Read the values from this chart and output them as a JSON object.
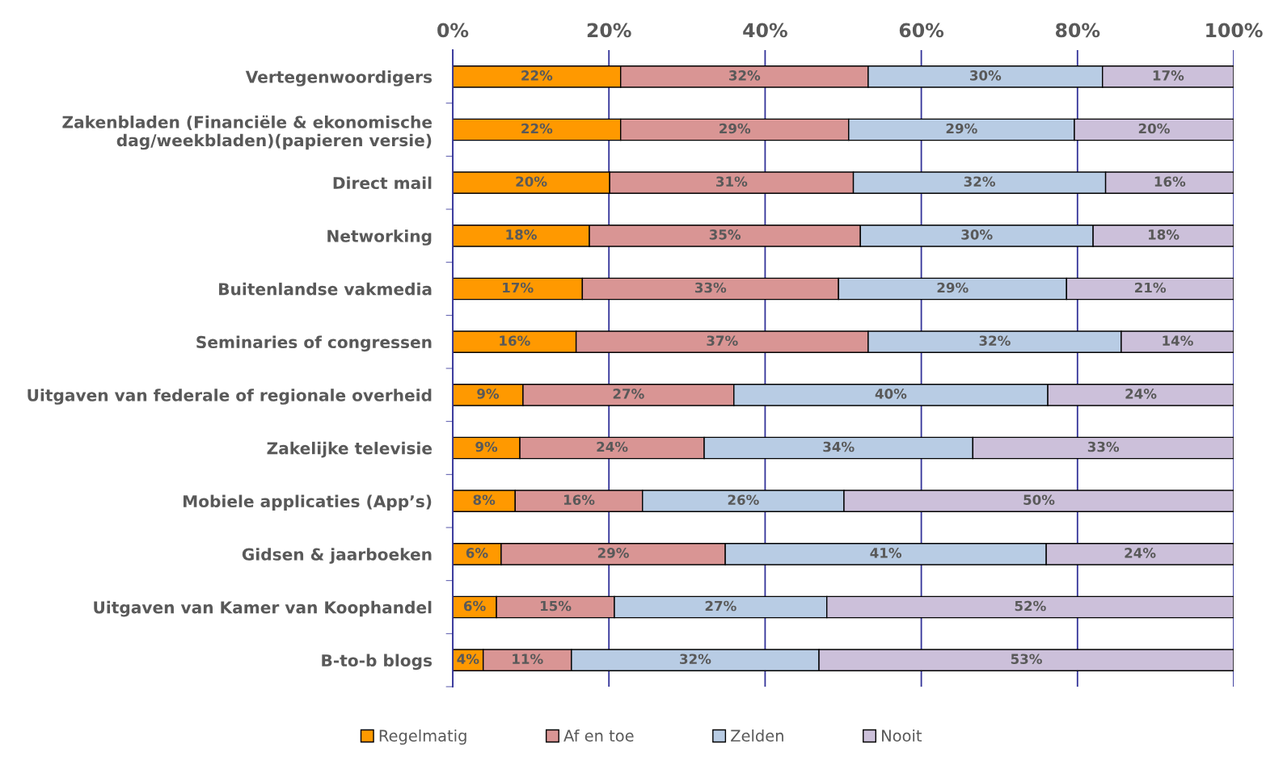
{
  "chart_data": {
    "type": "bar",
    "orientation": "horizontal",
    "stacked": true,
    "categories": [
      "Vertegenwoordigers",
      "Zakenbladen (Financiële & ekonomische\ndag/weekbladen)(papieren versie)",
      "Direct mail",
      "Networking",
      "Buitenlandse vakmedia",
      "Seminaries of congressen",
      "Uitgaven van federale of regionale overheid",
      "Zakelijke televisie",
      "Mobiele applicaties (App’s)",
      "Gidsen & jaarboeken",
      "Uitgaven van Kamer van Koophandel",
      "B-to-b blogs"
    ],
    "series": [
      {
        "name": "Regelmatig",
        "color": "#ff9900",
        "values": [
          21.5,
          21.5,
          20.1,
          17.5,
          16.6,
          15.8,
          9.0,
          8.6,
          8.0,
          6.2,
          5.6,
          3.9
        ],
        "value_labels": [
          "22%",
          "22%",
          "20%",
          "18%",
          "17%",
          "16%",
          "9%",
          "9%",
          "8%",
          "6%",
          "6%",
          "4%"
        ]
      },
      {
        "name": "Af en toe",
        "color": "#d99594",
        "values": [
          31.7,
          29.2,
          31.2,
          34.7,
          32.8,
          37.4,
          27.0,
          23.6,
          16.3,
          28.7,
          15.1,
          11.3
        ],
        "value_labels": [
          "32%",
          "29%",
          "31%",
          "35%",
          "33%",
          "37%",
          "27%",
          "24%",
          "16%",
          "29%",
          "15%",
          "11%"
        ]
      },
      {
        "name": "Zelden",
        "color": "#b8cce4",
        "values": [
          30.0,
          28.9,
          32.3,
          29.8,
          29.2,
          32.4,
          40.2,
          34.4,
          25.8,
          41.1,
          27.2,
          31.7
        ],
        "value_labels": [
          "30%",
          "29%",
          "32%",
          "30%",
          "29%",
          "32%",
          "40%",
          "34%",
          "26%",
          "41%",
          "27%",
          "32%"
        ]
      },
      {
        "name": "Nooit",
        "color": "#ccc0da",
        "values": [
          16.8,
          20.4,
          16.4,
          18.0,
          21.4,
          14.4,
          23.8,
          33.4,
          49.9,
          24.0,
          52.1,
          53.1
        ],
        "value_labels": [
          "17%",
          "20%",
          "16%",
          "18%",
          "21%",
          "14%",
          "24%",
          "33%",
          "50%",
          "24%",
          "52%",
          "53%"
        ]
      }
    ],
    "xlim": [
      0,
      100
    ],
    "xticks": [
      {
        "value": 0,
        "label": "0%"
      },
      {
        "value": 20,
        "label": "20%"
      },
      {
        "value": 40,
        "label": "40%"
      },
      {
        "value": 60,
        "label": "60%"
      },
      {
        "value": 80,
        "label": "80%"
      },
      {
        "value": 100,
        "label": "100%"
      }
    ],
    "grid": "x",
    "legend": "bottom"
  }
}
